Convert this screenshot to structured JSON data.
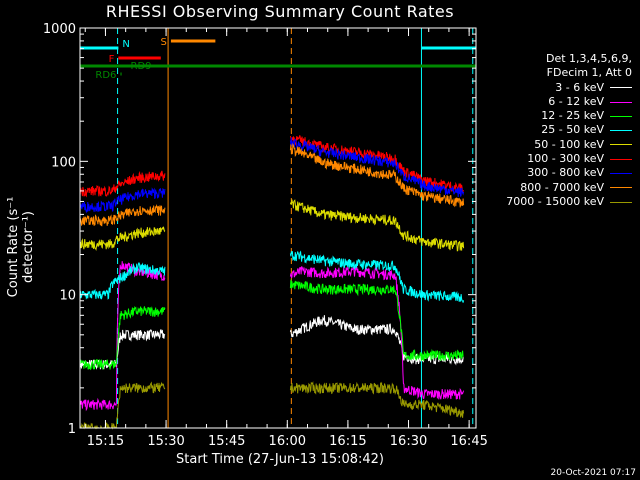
{
  "chart_data": {
    "type": "line",
    "title": "RHESSI Observing Summary Count Rates",
    "xlabel": "Start Time (27-Jun-13 15:08:42)",
    "ylabel": "Count Rate (s⁻¹ detector⁻¹)",
    "yscale": "log",
    "ylim": [
      1,
      1000
    ],
    "xlim_minutes": [
      0,
      98
    ],
    "x_tick_labels": [
      "15:15",
      "15:30",
      "15:45",
      "16:00",
      "16:15",
      "16:30",
      "16:45"
    ],
    "x_tick_minutes": [
      6.3,
      21.3,
      36.3,
      51.3,
      66.3,
      81.3,
      96.3
    ],
    "y_tick_labels": [
      "1",
      "10",
      "100",
      "1000"
    ],
    "y_tick_values": [
      1,
      10,
      100,
      1000
    ],
    "legend_header": [
      "Det 1,3,4,5,6,9,",
      "FDecim 1, Att 0"
    ],
    "series": [
      {
        "name": "3 - 6 keV",
        "color": "#ffffff",
        "values": [
          [
            0,
            3
          ],
          [
            9,
            3
          ],
          [
            10,
            5
          ],
          [
            14,
            5
          ],
          [
            20,
            5
          ],
          [
            21,
            5
          ],
          [
            52,
            5
          ],
          [
            60,
            6.5
          ],
          [
            68,
            5.5
          ],
          [
            78,
            5.5
          ],
          [
            80,
            3.5
          ],
          [
            83,
            3.3
          ],
          [
            95,
            3.3
          ]
        ]
      },
      {
        "name": "6 - 12 keV",
        "color": "#ff00ff",
        "values": [
          [
            0,
            1.5
          ],
          [
            9,
            1.5
          ],
          [
            10,
            17
          ],
          [
            14,
            15
          ],
          [
            20,
            14
          ],
          [
            21,
            14
          ],
          [
            52,
            14
          ],
          [
            55,
            15
          ],
          [
            60,
            14.5
          ],
          [
            68,
            15
          ],
          [
            78,
            14
          ],
          [
            80,
            2
          ],
          [
            85,
            1.8
          ],
          [
            95,
            1.8
          ]
        ]
      },
      {
        "name": "12 - 25 keV",
        "color": "#00ff00",
        "values": [
          [
            0,
            3
          ],
          [
            9,
            3
          ],
          [
            10,
            7
          ],
          [
            14,
            7.5
          ],
          [
            20,
            7.5
          ],
          [
            21,
            7.5
          ],
          [
            52,
            12
          ],
          [
            60,
            11
          ],
          [
            68,
            11
          ],
          [
            78,
            11
          ],
          [
            80,
            3.5
          ],
          [
            85,
            3.5
          ],
          [
            95,
            3.5
          ]
        ]
      },
      {
        "name": "25 - 50 keV",
        "color": "#00ffff",
        "values": [
          [
            0,
            10
          ],
          [
            7,
            10
          ],
          [
            8,
            12
          ],
          [
            14,
            16
          ],
          [
            20,
            15
          ],
          [
            21,
            15
          ],
          [
            52,
            20
          ],
          [
            60,
            18
          ],
          [
            68,
            17
          ],
          [
            78,
            16.5
          ],
          [
            80,
            11
          ],
          [
            85,
            10
          ],
          [
            95,
            9.5
          ]
        ]
      },
      {
        "name": "50 - 100 keV",
        "color": "#dddd00",
        "values": [
          [
            0,
            24
          ],
          [
            8,
            24
          ],
          [
            9,
            26
          ],
          [
            14,
            29
          ],
          [
            20,
            30
          ],
          [
            21,
            30
          ],
          [
            52,
            48
          ],
          [
            60,
            40
          ],
          [
            68,
            38
          ],
          [
            78,
            36
          ],
          [
            80,
            28
          ],
          [
            85,
            25
          ],
          [
            95,
            23
          ]
        ]
      },
      {
        "name": "100 - 300 keV",
        "color": "#ff0000",
        "values": [
          [
            0,
            60
          ],
          [
            8,
            60
          ],
          [
            9,
            65
          ],
          [
            14,
            75
          ],
          [
            20,
            78
          ],
          [
            21,
            78
          ],
          [
            52,
            150
          ],
          [
            60,
            128
          ],
          [
            68,
            118
          ],
          [
            78,
            105
          ],
          [
            80,
            85
          ],
          [
            85,
            72
          ],
          [
            95,
            62
          ]
        ]
      },
      {
        "name": "300 - 800 keV",
        "color": "#0000ff",
        "values": [
          [
            0,
            46
          ],
          [
            8,
            46
          ],
          [
            9,
            50
          ],
          [
            14,
            57
          ],
          [
            20,
            58
          ],
          [
            21,
            58
          ],
          [
            52,
            140
          ],
          [
            60,
            118
          ],
          [
            68,
            108
          ],
          [
            78,
            96
          ],
          [
            80,
            78
          ],
          [
            85,
            66
          ],
          [
            95,
            58
          ]
        ]
      },
      {
        "name": "800 - 7000 keV",
        "color": "#ff8800",
        "values": [
          [
            0,
            36
          ],
          [
            8,
            36
          ],
          [
            9,
            38
          ],
          [
            14,
            43
          ],
          [
            20,
            43
          ],
          [
            21,
            43
          ],
          [
            52,
            125
          ],
          [
            60,
            98
          ],
          [
            68,
            88
          ],
          [
            78,
            78
          ],
          [
            80,
            63
          ],
          [
            85,
            55
          ],
          [
            95,
            49
          ]
        ]
      },
      {
        "name": "7000 - 15000 keV",
        "color": "#999900",
        "values": [
          [
            0,
            1
          ],
          [
            9,
            1
          ],
          [
            10,
            2
          ],
          [
            20,
            2
          ],
          [
            21,
            2
          ],
          [
            52,
            2
          ],
          [
            60,
            2
          ],
          [
            68,
            2
          ],
          [
            78,
            2
          ],
          [
            80,
            1.5
          ],
          [
            85,
            1.5
          ],
          [
            95,
            1.3
          ]
        ]
      }
    ],
    "flag_bars": [
      {
        "label": "N",
        "color": "#00ffff",
        "segments": [
          [
            0,
            9.5
          ],
          [
            84.5,
            98
          ]
        ]
      },
      {
        "label": "F",
        "color": "#ff0000",
        "segments": [
          [
            9.5,
            20
          ]
        ]
      },
      {
        "label": "S",
        "color": "#ff8800",
        "segments": [
          [
            22.5,
            33.5
          ]
        ]
      },
      {
        "label": "RD9",
        "color": "#008800",
        "segments": [
          [
            0,
            98
          ]
        ]
      },
      {
        "label": "RD6",
        "color": "#008800",
        "segments": [
          [
            10,
            10.3
          ]
        ]
      }
    ],
    "vertical_markers": [
      {
        "color": "#00ffff",
        "style": "dashed",
        "minute": 9.3
      },
      {
        "color": "#ff8800",
        "style": "solid",
        "minute": 21.8
      },
      {
        "color": "#ff8800",
        "style": "dashed",
        "minute": 52.3
      },
      {
        "color": "#00ffff",
        "style": "solid",
        "minute": 84.5
      },
      {
        "color": "#00ffff",
        "style": "dashed",
        "minute": 97.2
      }
    ]
  },
  "timestamp": "20-Oct-2021 07:17"
}
